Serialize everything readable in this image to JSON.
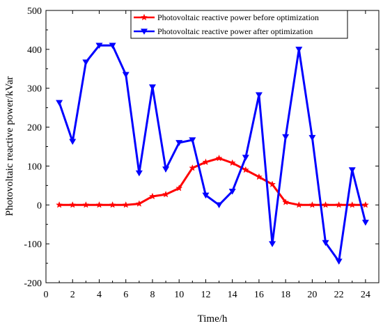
{
  "chart_data": {
    "type": "line",
    "title": "",
    "xlabel": "Time/h",
    "ylabel": "Photovoltaic reactive power/kVar",
    "xlim": [
      0,
      25
    ],
    "ylim": [
      -200,
      500
    ],
    "xticks": [
      0,
      2,
      4,
      6,
      8,
      10,
      12,
      14,
      16,
      18,
      20,
      22,
      24
    ],
    "yticks": [
      -200,
      -100,
      0,
      100,
      200,
      300,
      400,
      500
    ],
    "grid": false,
    "legend_position": "top-right",
    "x": [
      1,
      2,
      3,
      4,
      5,
      6,
      7,
      8,
      9,
      10,
      11,
      12,
      13,
      14,
      15,
      16,
      17,
      18,
      19,
      20,
      21,
      22,
      23,
      24
    ],
    "series": [
      {
        "name": "Photovoltaic reactive power before optimization",
        "color": "#ff0000",
        "marker": "star",
        "values": [
          0,
          0,
          0,
          0,
          0,
          0,
          3,
          22,
          27,
          43,
          95,
          110,
          120,
          108,
          90,
          72,
          53,
          7,
          0,
          0,
          0,
          0,
          0,
          0
        ]
      },
      {
        "name": "Photovoltaic reactive power after optimization",
        "color": "#0000ff",
        "marker": "triangle-down",
        "values": [
          263,
          163,
          367,
          410,
          410,
          335,
          82,
          303,
          92,
          160,
          167,
          25,
          0,
          35,
          122,
          283,
          -100,
          175,
          400,
          173,
          -97,
          -145,
          90,
          -45
        ]
      }
    ]
  }
}
